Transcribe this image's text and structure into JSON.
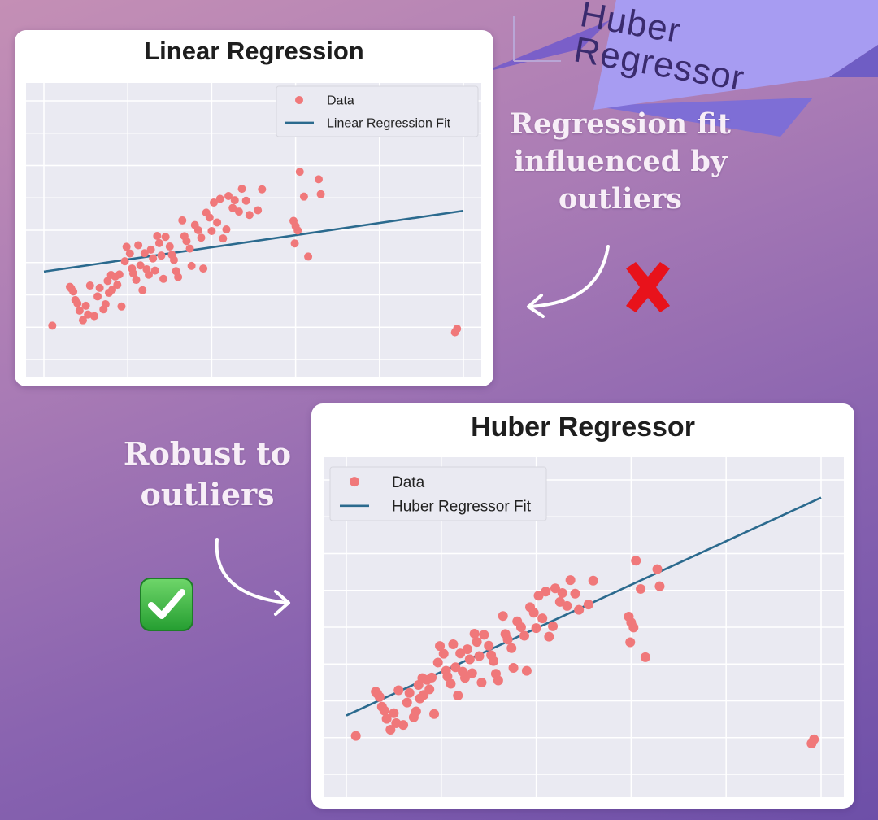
{
  "banner": {
    "text": "Huber Regressor",
    "fill": "#8f86e6"
  },
  "annotations": {
    "linear": "Regression fit influenced by outliers",
    "huber": "Robust to outliers"
  },
  "icons": {
    "cross": "cross-mark-icon",
    "check": "check-mark-icon",
    "arrow": "curved-arrow-icon"
  },
  "colors": {
    "points": "#f0787a",
    "line": "#2b6a8e",
    "plot_bg": "#eaeaf2",
    "grid": "#ffffff",
    "cross": "#e8121b",
    "check_bg": "#2fae3a"
  },
  "chart_data": [
    {
      "type": "scatter",
      "title": "Linear Regression",
      "legend": {
        "placement": "top-right",
        "entries": [
          "Data",
          "Linear Regression Fit"
        ]
      },
      "grid": true,
      "xlim": [
        0,
        10
      ],
      "ylim": [
        0,
        10
      ],
      "series": [
        {
          "name": "Data",
          "kind": "scatter",
          "points": [
            [
              0.62,
              2.81
            ],
            [
              0.65,
              2.75
            ],
            [
              0.7,
              2.63
            ],
            [
              0.75,
              2.3
            ],
            [
              0.8,
              2.17
            ],
            [
              0.85,
              1.89
            ],
            [
              0.93,
              1.52
            ],
            [
              1.0,
              2.08
            ],
            [
              1.05,
              1.74
            ],
            [
              1.1,
              2.86
            ],
            [
              1.2,
              1.68
            ],
            [
              1.28,
              2.44
            ],
            [
              1.33,
              2.77
            ],
            [
              1.42,
              1.94
            ],
            [
              1.47,
              2.14
            ],
            [
              1.52,
              3.04
            ],
            [
              1.55,
              2.58
            ],
            [
              1.6,
              3.27
            ],
            [
              1.63,
              2.7
            ],
            [
              1.7,
              3.21
            ],
            [
              1.75,
              2.89
            ],
            [
              1.8,
              3.29
            ],
            [
              1.85,
              2.05
            ],
            [
              1.93,
              3.8
            ],
            [
              1.97,
              4.36
            ],
            [
              2.05,
              4.1
            ],
            [
              2.1,
              3.52
            ],
            [
              2.13,
              3.33
            ],
            [
              2.2,
              3.08
            ],
            [
              2.25,
              4.42
            ],
            [
              2.3,
              3.64
            ],
            [
              2.35,
              2.68
            ],
            [
              2.4,
              4.11
            ],
            [
              2.45,
              3.49
            ],
            [
              2.5,
              3.28
            ],
            [
              2.55,
              4.25
            ],
            [
              2.6,
              3.91
            ],
            [
              2.65,
              3.44
            ],
            [
              2.7,
              4.78
            ],
            [
              2.75,
              4.5
            ],
            [
              2.8,
              4.02
            ],
            [
              2.85,
              3.12
            ],
            [
              2.9,
              4.74
            ],
            [
              3.0,
              4.37
            ],
            [
              3.05,
              4.05
            ],
            [
              3.1,
              3.85
            ],
            [
              3.15,
              3.42
            ],
            [
              3.2,
              3.19
            ],
            [
              3.3,
              5.38
            ],
            [
              3.35,
              4.77
            ],
            [
              3.4,
              4.58
            ],
            [
              3.48,
              4.29
            ],
            [
              3.52,
              3.62
            ],
            [
              3.6,
              5.2
            ],
            [
              3.68,
              5.0
            ],
            [
              3.75,
              4.71
            ],
            [
              3.8,
              3.52
            ],
            [
              3.87,
              5.68
            ],
            [
              3.95,
              5.49
            ],
            [
              4.0,
              4.97
            ],
            [
              4.05,
              6.07
            ],
            [
              4.13,
              5.3
            ],
            [
              4.2,
              6.21
            ],
            [
              4.27,
              4.68
            ],
            [
              4.35,
              5.03
            ],
            [
              4.4,
              6.32
            ],
            [
              4.5,
              5.86
            ],
            [
              4.55,
              6.16
            ],
            [
              4.65,
              5.72
            ],
            [
              4.72,
              6.6
            ],
            [
              4.82,
              6.14
            ],
            [
              4.9,
              5.59
            ],
            [
              5.1,
              5.77
            ],
            [
              5.2,
              6.58
            ],
            [
              5.95,
              5.36
            ],
            [
              5.98,
              4.49
            ],
            [
              6.0,
              5.16
            ],
            [
              6.05,
              4.99
            ],
            [
              6.1,
              7.26
            ],
            [
              6.2,
              6.3
            ],
            [
              6.3,
              3.98
            ],
            [
              6.55,
              6.97
            ],
            [
              6.6,
              6.39
            ],
            [
              0.2,
              1.31
            ],
            [
              9.8,
              1.05
            ],
            [
              9.85,
              1.19
            ]
          ]
        },
        {
          "name": "Linear Regression Fit",
          "kind": "line",
          "points": [
            [
              0.0,
              3.4
            ],
            [
              10.0,
              5.75
            ]
          ]
        }
      ]
    },
    {
      "type": "scatter",
      "title": "Huber Regressor",
      "legend": {
        "placement": "top-left",
        "entries": [
          "Data",
          "Huber Regressor Fit"
        ]
      },
      "grid": true,
      "xlim": [
        0,
        10
      ],
      "ylim": [
        0,
        10
      ],
      "series": [
        {
          "name": "Data",
          "kind": "scatter",
          "points": [
            [
              0.62,
              2.81
            ],
            [
              0.65,
              2.75
            ],
            [
              0.7,
              2.63
            ],
            [
              0.75,
              2.3
            ],
            [
              0.8,
              2.17
            ],
            [
              0.85,
              1.89
            ],
            [
              0.93,
              1.52
            ],
            [
              1.0,
              2.08
            ],
            [
              1.05,
              1.74
            ],
            [
              1.1,
              2.86
            ],
            [
              1.2,
              1.68
            ],
            [
              1.28,
              2.44
            ],
            [
              1.33,
              2.77
            ],
            [
              1.42,
              1.94
            ],
            [
              1.47,
              2.14
            ],
            [
              1.52,
              3.04
            ],
            [
              1.55,
              2.58
            ],
            [
              1.6,
              3.27
            ],
            [
              1.63,
              2.7
            ],
            [
              1.7,
              3.21
            ],
            [
              1.75,
              2.89
            ],
            [
              1.8,
              3.29
            ],
            [
              1.85,
              2.05
            ],
            [
              1.93,
              3.8
            ],
            [
              1.97,
              4.36
            ],
            [
              2.05,
              4.1
            ],
            [
              2.1,
              3.52
            ],
            [
              2.13,
              3.33
            ],
            [
              2.2,
              3.08
            ],
            [
              2.25,
              4.42
            ],
            [
              2.3,
              3.64
            ],
            [
              2.35,
              2.68
            ],
            [
              2.4,
              4.11
            ],
            [
              2.45,
              3.49
            ],
            [
              2.5,
              3.28
            ],
            [
              2.55,
              4.25
            ],
            [
              2.6,
              3.91
            ],
            [
              2.65,
              3.44
            ],
            [
              2.7,
              4.78
            ],
            [
              2.75,
              4.5
            ],
            [
              2.8,
              4.02
            ],
            [
              2.85,
              3.12
            ],
            [
              2.9,
              4.74
            ],
            [
              3.0,
              4.37
            ],
            [
              3.05,
              4.05
            ],
            [
              3.1,
              3.85
            ],
            [
              3.15,
              3.42
            ],
            [
              3.2,
              3.19
            ],
            [
              3.3,
              5.38
            ],
            [
              3.35,
              4.77
            ],
            [
              3.4,
              4.58
            ],
            [
              3.48,
              4.29
            ],
            [
              3.52,
              3.62
            ],
            [
              3.6,
              5.2
            ],
            [
              3.68,
              5.0
            ],
            [
              3.75,
              4.71
            ],
            [
              3.8,
              3.52
            ],
            [
              3.87,
              5.68
            ],
            [
              3.95,
              5.49
            ],
            [
              4.0,
              4.97
            ],
            [
              4.05,
              6.07
            ],
            [
              4.13,
              5.3
            ],
            [
              4.2,
              6.21
            ],
            [
              4.27,
              4.68
            ],
            [
              4.35,
              5.03
            ],
            [
              4.4,
              6.32
            ],
            [
              4.5,
              5.86
            ],
            [
              4.55,
              6.16
            ],
            [
              4.65,
              5.72
            ],
            [
              4.72,
              6.6
            ],
            [
              4.82,
              6.14
            ],
            [
              4.9,
              5.59
            ],
            [
              5.1,
              5.77
            ],
            [
              5.2,
              6.58
            ],
            [
              5.95,
              5.36
            ],
            [
              5.98,
              4.49
            ],
            [
              6.0,
              5.16
            ],
            [
              6.05,
              4.99
            ],
            [
              6.1,
              7.26
            ],
            [
              6.2,
              6.3
            ],
            [
              6.3,
              3.98
            ],
            [
              6.55,
              6.97
            ],
            [
              6.6,
              6.39
            ],
            [
              0.2,
              1.31
            ],
            [
              9.8,
              1.05
            ],
            [
              9.85,
              1.19
            ]
          ]
        },
        {
          "name": "Huber Regressor Fit",
          "kind": "line",
          "points": [
            [
              0.0,
              2.0
            ],
            [
              10.0,
              9.4
            ]
          ]
        }
      ]
    }
  ]
}
